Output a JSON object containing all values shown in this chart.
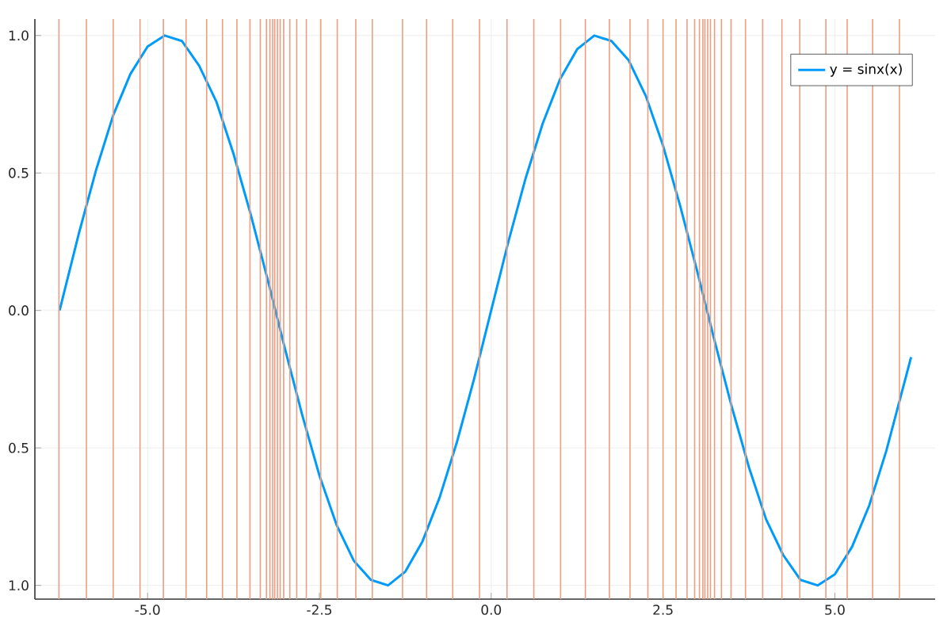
{
  "chart_data": {
    "type": "line",
    "xlim": [
      -6.64,
      6.46
    ],
    "ylim": [
      -1.05,
      1.06
    ],
    "xticks": [
      {
        "value": -5,
        "label": "-5.0"
      },
      {
        "value": -2.5,
        "label": "-2.5"
      },
      {
        "value": 0,
        "label": "0.0"
      },
      {
        "value": 2.5,
        "label": "2.5"
      },
      {
        "value": 5,
        "label": "5.0"
      }
    ],
    "yticks": [
      {
        "value": -1,
        "label": "1.0"
      },
      {
        "value": -0.5,
        "label": "0.5"
      },
      {
        "value": 0,
        "label": "0.0"
      },
      {
        "value": 0.5,
        "label": "0.5"
      },
      {
        "value": 1,
        "label": "1.0"
      }
    ],
    "grid": true,
    "legend": "top right",
    "series": [
      {
        "name": "y = sinx(x)",
        "color": "#009af9",
        "x": [
          -6.28,
          -6.0,
          -5.75,
          -5.5,
          -5.25,
          -5.0,
          -4.75,
          -4.5,
          -4.25,
          -4.0,
          -3.75,
          -3.5,
          -3.25,
          -3.0,
          -2.75,
          -2.5,
          -2.25,
          -2.0,
          -1.75,
          -1.5,
          -1.25,
          -1.0,
          -0.75,
          -0.5,
          -0.25,
          0,
          0.25,
          0.5,
          0.75,
          1.0,
          1.25,
          1.5,
          1.75,
          2.0,
          2.25,
          2.5,
          2.75,
          3.0,
          3.25,
          3.5,
          3.75,
          4.0,
          4.25,
          4.5,
          4.75,
          5.0,
          5.25,
          5.5,
          5.75,
          6.11
        ],
        "values": [
          0,
          0.28,
          0.51,
          0.71,
          0.86,
          0.96,
          1.0,
          0.98,
          0.89,
          0.76,
          0.57,
          0.35,
          0.11,
          -0.14,
          -0.38,
          -0.6,
          -0.78,
          -0.91,
          -0.98,
          -1.0,
          -0.95,
          -0.84,
          -0.68,
          -0.48,
          -0.25,
          0,
          0.25,
          0.48,
          0.68,
          0.84,
          0.95,
          1.0,
          0.98,
          0.91,
          0.78,
          0.6,
          0.38,
          0.14,
          -0.11,
          -0.35,
          -0.57,
          -0.76,
          -0.89,
          -0.98,
          -1.0,
          -0.96,
          -0.86,
          -0.71,
          -0.51,
          -0.17
        ]
      }
    ],
    "ref_lines": [
      {
        "axis": "x",
        "value": -6.29,
        "color": "#eb9e80"
      },
      {
        "axis": "x",
        "value": -5.89,
        "color": "#eb9e80"
      },
      {
        "axis": "x",
        "value": -5.5,
        "color": "#eb9e80"
      },
      {
        "axis": "x",
        "value": -5.11,
        "color": "#eb9e80"
      },
      {
        "axis": "x",
        "value": -4.77,
        "color": "#eb9e80"
      },
      {
        "axis": "x",
        "value": -4.44,
        "color": "#eb9e80"
      },
      {
        "axis": "x",
        "value": -4.14,
        "color": "#eb9e80"
      },
      {
        "axis": "x",
        "value": -3.91,
        "color": "#eb9e80"
      },
      {
        "axis": "x",
        "value": -3.7,
        "color": "#eb9e80"
      },
      {
        "axis": "x",
        "value": -3.51,
        "color": "#eb9e80"
      },
      {
        "axis": "x",
        "value": -3.36,
        "color": "#eb9e80"
      },
      {
        "axis": "x",
        "value": -3.27,
        "color": "#eb9e80"
      },
      {
        "axis": "x",
        "value": -3.22,
        "color": "#eb9e80"
      },
      {
        "axis": "x",
        "value": -3.18,
        "color": "#eb9e80"
      },
      {
        "axis": "x",
        "value": -3.15,
        "color": "#eb9e80"
      },
      {
        "axis": "x",
        "value": -3.11,
        "color": "#eb9e80"
      },
      {
        "axis": "x",
        "value": -3.07,
        "color": "#eb9e80"
      },
      {
        "axis": "x",
        "value": -3.02,
        "color": "#eb9e80"
      },
      {
        "axis": "x",
        "value": -2.93,
        "color": "#eb9e80"
      },
      {
        "axis": "x",
        "value": -2.83,
        "color": "#eb9e80"
      },
      {
        "axis": "x",
        "value": -2.69,
        "color": "#eb9e80"
      },
      {
        "axis": "x",
        "value": -2.48,
        "color": "#eb9e80"
      },
      {
        "axis": "x",
        "value": -2.24,
        "color": "#eb9e80"
      },
      {
        "axis": "x",
        "value": -1.97,
        "color": "#eb9e80"
      },
      {
        "axis": "x",
        "value": -1.73,
        "color": "#eb9e80"
      },
      {
        "axis": "x",
        "value": -1.29,
        "color": "#eb9e80"
      },
      {
        "axis": "x",
        "value": -0.94,
        "color": "#eb9e80"
      },
      {
        "axis": "x",
        "value": -0.56,
        "color": "#eb9e80"
      },
      {
        "axis": "x",
        "value": -0.17,
        "color": "#eb9e80"
      },
      {
        "axis": "x",
        "value": 0.23,
        "color": "#eb9e80"
      },
      {
        "axis": "x",
        "value": 0.62,
        "color": "#eb9e80"
      },
      {
        "axis": "x",
        "value": 1.01,
        "color": "#eb9e80"
      },
      {
        "axis": "x",
        "value": 1.37,
        "color": "#eb9e80"
      },
      {
        "axis": "x",
        "value": 1.72,
        "color": "#eb9e80"
      },
      {
        "axis": "x",
        "value": 2.02,
        "color": "#eb9e80"
      },
      {
        "axis": "x",
        "value": 2.28,
        "color": "#eb9e80"
      },
      {
        "axis": "x",
        "value": 2.5,
        "color": "#eb9e80"
      },
      {
        "axis": "x",
        "value": 2.69,
        "color": "#eb9e80"
      },
      {
        "axis": "x",
        "value": 2.85,
        "color": "#eb9e80"
      },
      {
        "axis": "x",
        "value": 2.96,
        "color": "#eb9e80"
      },
      {
        "axis": "x",
        "value": 3.03,
        "color": "#eb9e80"
      },
      {
        "axis": "x",
        "value": 3.08,
        "color": "#eb9e80"
      },
      {
        "axis": "x",
        "value": 3.11,
        "color": "#eb9e80"
      },
      {
        "axis": "x",
        "value": 3.15,
        "color": "#eb9e80"
      },
      {
        "axis": "x",
        "value": 3.19,
        "color": "#eb9e80"
      },
      {
        "axis": "x",
        "value": 3.25,
        "color": "#eb9e80"
      },
      {
        "axis": "x",
        "value": 3.35,
        "color": "#eb9e80"
      },
      {
        "axis": "x",
        "value": 3.49,
        "color": "#eb9e80"
      },
      {
        "axis": "x",
        "value": 3.7,
        "color": "#eb9e80"
      },
      {
        "axis": "x",
        "value": 3.95,
        "color": "#eb9e80"
      },
      {
        "axis": "x",
        "value": 4.23,
        "color": "#eb9e80"
      },
      {
        "axis": "x",
        "value": 4.49,
        "color": "#eb9e80"
      },
      {
        "axis": "x",
        "value": 4.87,
        "color": "#eb9e80"
      },
      {
        "axis": "x",
        "value": 5.18,
        "color": "#eb9e80"
      },
      {
        "axis": "x",
        "value": 5.55,
        "color": "#eb9e80"
      },
      {
        "axis": "x",
        "value": 5.94,
        "color": "#eb9e80"
      }
    ]
  }
}
